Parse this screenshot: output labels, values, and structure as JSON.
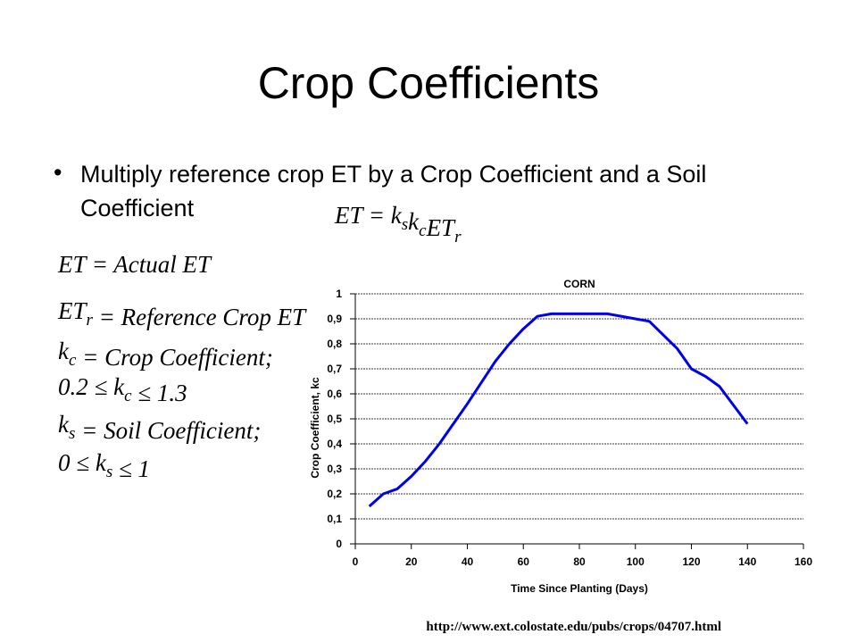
{
  "title": "Crop Coefficients",
  "bullet": "Multiply reference crop ET by a Crop Coefficient and a Soil Coefficient",
  "equation": [
    {
      "text": "ET = k",
      "sub": "s"
    },
    {
      "text": "k",
      "sub": "c"
    },
    {
      "text": "ET",
      "sub": "r"
    }
  ],
  "definitions": [
    [
      {
        "text": "ET = Actual ET"
      }
    ],
    [
      {
        "text": "ET",
        "sub": "r"
      },
      {
        "text": " = Reference Crop ET"
      }
    ],
    [
      {
        "text": "k",
        "sub": "c"
      },
      {
        "text": " = Crop Coefficient;"
      }
    ],
    [
      {
        "text": "0.2 ≤ k",
        "sub": "c"
      },
      {
        "text": " ≤ 1.3"
      }
    ],
    [
      {
        "text": "k",
        "sub": "s"
      },
      {
        "text": " = Soil Coefficient;"
      }
    ],
    [
      {
        "text": "0 ≤ k",
        "sub": "s"
      },
      {
        "text": " ≤ 1"
      }
    ]
  ],
  "source": "http://www.ext.colostate.edu/pubs/crops/04707.html",
  "chart_data": {
    "type": "line",
    "title": "CORN",
    "x_label": "Time Since Planting (Days)",
    "y_label": "Crop Coefficient, kc",
    "x": [
      5,
      10,
      15,
      20,
      25,
      30,
      40,
      50,
      55,
      60,
      65,
      70,
      90,
      100,
      105,
      115,
      120,
      125,
      130,
      140
    ],
    "values": [
      0.15,
      0.2,
      0.22,
      0.27,
      0.33,
      0.4,
      0.56,
      0.73,
      0.8,
      0.86,
      0.91,
      0.92,
      0.92,
      0.9,
      0.89,
      0.78,
      0.7,
      0.67,
      0.63,
      0.48
    ],
    "color": "#0000ee",
    "xlim": [
      0,
      160
    ],
    "xticks": [
      0,
      20,
      40,
      60,
      80,
      100,
      120,
      140,
      160
    ],
    "ylim": [
      0,
      1
    ],
    "yticks": [
      0,
      {
        "value": 0.1,
        "label": "0,1"
      },
      {
        "value": 0.2,
        "label": "0,2"
      },
      {
        "value": 0.3,
        "label": "0,3"
      },
      {
        "value": 0.4,
        "label": "0,4"
      },
      {
        "value": 0.5,
        "label": "0,5"
      },
      {
        "value": 0.6,
        "label": "0,6"
      },
      {
        "value": 0.7,
        "label": "0,7"
      },
      {
        "value": 0.8,
        "label": "0,8"
      },
      {
        "value": 0.9,
        "label": "0,9"
      },
      1
    ],
    "grid": true
  }
}
